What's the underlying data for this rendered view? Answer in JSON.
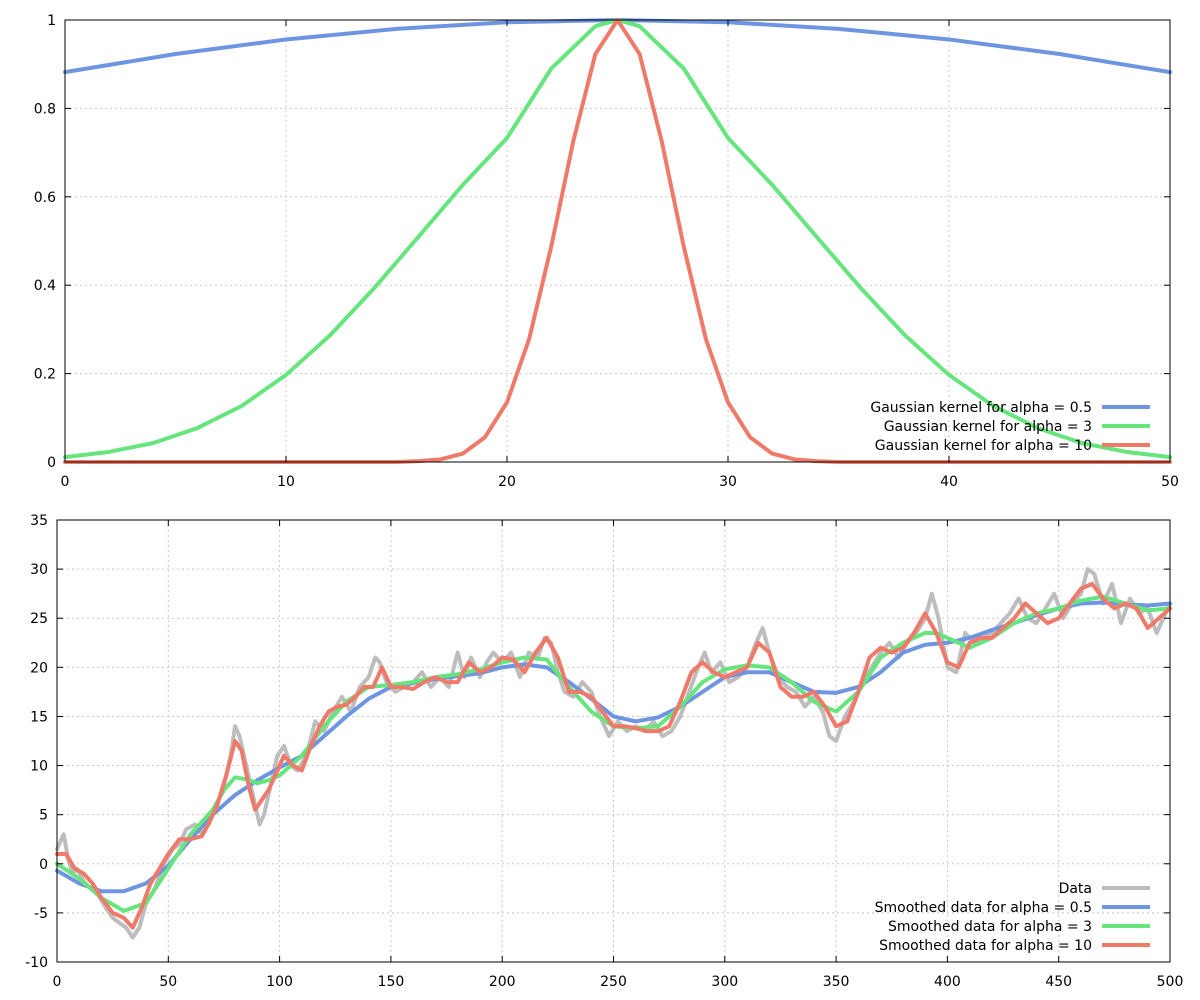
{
  "chart_data": [
    {
      "type": "line",
      "title": "",
      "xlabel": "",
      "ylabel": "",
      "xlim": [
        0,
        50
      ],
      "ylim": [
        0,
        1
      ],
      "xticks": [
        0,
        10,
        20,
        30,
        40,
        50
      ],
      "yticks": [
        0,
        0.2,
        0.4,
        0.6,
        0.8,
        1
      ],
      "grid": true,
      "legend_position": "bottom-right",
      "series": [
        {
          "name": "Gaussian kernel for alpha = 0.5",
          "color": "#6e95e2",
          "x": [
            0,
            5,
            10,
            15,
            20,
            25,
            30,
            35,
            40,
            45,
            50
          ],
          "y": [
            0.882,
            0.923,
            0.956,
            0.98,
            0.995,
            1.0,
            0.995,
            0.98,
            0.956,
            0.923,
            0.882
          ]
        },
        {
          "name": "Gaussian kernel for alpha = 3",
          "color": "#66e57c",
          "x": [
            0,
            2,
            4,
            6,
            8,
            10,
            12,
            14,
            16,
            18,
            20,
            22,
            24,
            25,
            26,
            28,
            30,
            32,
            34,
            36,
            38,
            40,
            42,
            44,
            46,
            48,
            50
          ],
          "y": [
            0.011,
            0.023,
            0.043,
            0.077,
            0.127,
            0.197,
            0.287,
            0.394,
            0.51,
            0.627,
            0.733,
            0.89,
            0.986,
            1.0,
            0.986,
            0.89,
            0.733,
            0.627,
            0.51,
            0.394,
            0.287,
            0.197,
            0.127,
            0.077,
            0.043,
            0.023,
            0.011
          ]
        },
        {
          "name": "Gaussian kernel for alpha = 10",
          "color": "#f07a6a",
          "x": [
            0,
            15,
            16,
            17,
            18,
            19,
            20,
            21,
            22,
            23,
            24,
            25,
            26,
            27,
            28,
            29,
            30,
            31,
            32,
            33,
            34,
            35,
            50
          ],
          "y": [
            0,
            0,
            0.002,
            0.006,
            0.019,
            0.056,
            0.135,
            0.278,
            0.487,
            0.726,
            0.923,
            1.0,
            0.923,
            0.726,
            0.487,
            0.278,
            0.135,
            0.056,
            0.019,
            0.006,
            0.002,
            0,
            0
          ]
        }
      ]
    },
    {
      "type": "line",
      "title": "",
      "xlabel": "",
      "ylabel": "",
      "xlim": [
        0,
        500
      ],
      "ylim": [
        -10,
        35
      ],
      "xticks": [
        0,
        50,
        100,
        150,
        200,
        250,
        300,
        350,
        400,
        450,
        500
      ],
      "yticks": [
        -10,
        -5,
        0,
        5,
        10,
        15,
        20,
        25,
        30,
        35
      ],
      "grid": true,
      "legend_position": "bottom-right",
      "series": [
        {
          "name": "Data",
          "color": "#bdbdbd",
          "x": [
            0,
            3,
            5,
            7,
            9,
            12,
            15,
            18,
            22,
            25,
            28,
            31,
            34,
            37,
            40,
            44,
            48,
            52,
            55,
            58,
            62,
            65,
            68,
            72,
            75,
            78,
            80,
            82,
            85,
            88,
            91,
            93,
            96,
            99,
            102,
            105,
            108,
            112,
            116,
            120,
            124,
            128,
            132,
            136,
            140,
            143,
            145,
            148,
            152,
            156,
            160,
            164,
            168,
            172,
            176,
            180,
            183,
            186,
            190,
            193,
            196,
            200,
            204,
            208,
            212,
            216,
            219,
            222,
            225,
            228,
            232,
            236,
            240,
            244,
            248,
            252,
            256,
            260,
            264,
            268,
            272,
            276,
            280,
            284,
            288,
            291,
            294,
            298,
            302,
            306,
            310,
            314,
            317,
            320,
            324,
            328,
            332,
            336,
            340,
            344,
            347,
            350,
            354,
            358,
            362,
            366,
            370,
            374,
            378,
            382,
            386,
            390,
            393,
            396,
            400,
            404,
            408,
            412,
            416,
            420,
            424,
            428,
            432,
            436,
            440,
            444,
            448,
            452,
            456,
            460,
            463,
            466,
            470,
            474,
            478,
            482,
            486,
            490,
            494,
            497,
            500
          ],
          "y": [
            1.5,
            3.0,
            0.5,
            -1.0,
            -0.5,
            -1.8,
            -2.5,
            -3.0,
            -4.5,
            -5.5,
            -6.0,
            -6.5,
            -7.5,
            -6.5,
            -4.0,
            -2.5,
            0.0,
            1.5,
            2.0,
            3.5,
            4.0,
            3.0,
            4.0,
            6.0,
            8.0,
            11.0,
            14.0,
            13.0,
            10.0,
            7.0,
            4.0,
            5.0,
            8.0,
            11.0,
            12.0,
            10.0,
            9.5,
            11.0,
            14.5,
            13.5,
            15.5,
            17.0,
            15.5,
            18.0,
            19.0,
            21.0,
            20.5,
            18.5,
            17.5,
            18.0,
            18.5,
            19.5,
            18.0,
            19.0,
            18.0,
            21.5,
            19.0,
            21.0,
            19.0,
            20.5,
            21.5,
            20.5,
            21.5,
            19.0,
            21.5,
            21.0,
            23.0,
            22.5,
            19.5,
            17.5,
            17.0,
            18.5,
            17.5,
            15.0,
            13.0,
            14.5,
            13.5,
            14.0,
            13.5,
            14.5,
            13.0,
            13.5,
            15.0,
            17.5,
            20.0,
            21.5,
            19.5,
            20.5,
            18.5,
            19.0,
            20.0,
            22.5,
            24.0,
            21.5,
            19.0,
            18.0,
            17.5,
            16.0,
            17.0,
            15.5,
            13.0,
            12.5,
            15.0,
            16.5,
            18.5,
            20.0,
            21.5,
            22.5,
            21.0,
            22.5,
            23.5,
            25.0,
            27.5,
            25.0,
            20.0,
            19.5,
            23.5,
            22.5,
            23.0,
            23.5,
            24.5,
            25.5,
            27.0,
            25.0,
            24.5,
            26.0,
            27.5,
            25.0,
            26.5,
            27.5,
            30.0,
            29.5,
            26.5,
            28.5,
            24.5,
            27.0,
            25.5,
            26.0,
            23.5,
            25.0,
            26.5
          ]
        },
        {
          "name": "Smoothed data for alpha = 0.5",
          "color": "#6e95e2",
          "x": [
            0,
            10,
            20,
            30,
            40,
            50,
            60,
            70,
            80,
            90,
            100,
            110,
            120,
            130,
            140,
            150,
            160,
            170,
            180,
            190,
            200,
            210,
            220,
            230,
            240,
            250,
            260,
            270,
            280,
            290,
            300,
            310,
            320,
            330,
            340,
            350,
            360,
            370,
            380,
            390,
            400,
            410,
            420,
            430,
            440,
            450,
            460,
            470,
            480,
            490,
            500
          ],
          "y": [
            -0.7,
            -2.0,
            -2.8,
            -2.8,
            -2.0,
            -0.2,
            2.5,
            5.0,
            7.0,
            8.5,
            9.8,
            11.0,
            13.0,
            15.0,
            16.8,
            18.0,
            18.4,
            18.8,
            19.1,
            19.4,
            20.0,
            20.3,
            20.0,
            18.5,
            16.8,
            15.0,
            14.5,
            14.9,
            16.0,
            17.5,
            19.0,
            19.5,
            19.5,
            18.5,
            17.5,
            17.4,
            18.0,
            19.5,
            21.5,
            22.3,
            22.5,
            23.0,
            23.8,
            24.5,
            25.3,
            26.0,
            26.5,
            26.6,
            26.4,
            26.3,
            26.5
          ]
        },
        {
          "name": "Smoothed data for alpha = 3",
          "color": "#66e57c",
          "x": [
            0,
            10,
            20,
            30,
            40,
            50,
            60,
            70,
            75,
            80,
            85,
            90,
            95,
            100,
            110,
            120,
            130,
            140,
            150,
            160,
            170,
            180,
            190,
            200,
            210,
            220,
            230,
            240,
            250,
            260,
            270,
            280,
            290,
            300,
            310,
            320,
            330,
            340,
            350,
            360,
            370,
            380,
            390,
            395,
            400,
            410,
            420,
            430,
            440,
            450,
            460,
            470,
            480,
            490,
            500
          ],
          "y": [
            0.0,
            -1.5,
            -3.5,
            -4.8,
            -4.0,
            -0.5,
            3.0,
            5.5,
            7.5,
            8.8,
            8.6,
            8.2,
            8.5,
            9.0,
            11.0,
            14.0,
            16.5,
            18.0,
            18.2,
            18.5,
            19.0,
            19.3,
            19.8,
            20.5,
            21.0,
            20.8,
            18.0,
            15.5,
            14.0,
            13.8,
            14.0,
            16.0,
            18.5,
            19.8,
            20.2,
            20.0,
            18.5,
            16.5,
            15.5,
            17.5,
            21.0,
            22.5,
            23.5,
            23.5,
            23.0,
            22.0,
            23.0,
            24.5,
            25.5,
            26.0,
            26.8,
            27.2,
            26.5,
            25.8,
            26.0
          ]
        },
        {
          "name": "Smoothed data for alpha = 10",
          "color": "#f07a6a",
          "x": [
            0,
            4,
            8,
            12,
            16,
            20,
            25,
            30,
            34,
            38,
            42,
            46,
            50,
            55,
            60,
            65,
            68,
            72,
            76,
            80,
            83,
            86,
            89,
            92,
            95,
            98,
            102,
            106,
            110,
            114,
            118,
            122,
            126,
            130,
            134,
            138,
            142,
            146,
            150,
            155,
            160,
            165,
            170,
            175,
            180,
            185,
            190,
            195,
            200,
            205,
            210,
            215,
            220,
            225,
            230,
            235,
            240,
            245,
            250,
            255,
            260,
            265,
            270,
            275,
            280,
            285,
            290,
            295,
            300,
            305,
            310,
            315,
            320,
            325,
            330,
            335,
            340,
            345,
            350,
            355,
            360,
            365,
            370,
            375,
            380,
            385,
            390,
            395,
            400,
            405,
            410,
            415,
            420,
            425,
            430,
            435,
            440,
            445,
            450,
            455,
            460,
            465,
            470,
            475,
            480,
            485,
            490,
            495,
            500
          ],
          "y": [
            1.0,
            1.0,
            -0.5,
            -1.0,
            -2.0,
            -3.5,
            -5.0,
            -5.5,
            -6.5,
            -4.5,
            -2.0,
            -0.5,
            1.0,
            2.5,
            2.5,
            2.8,
            4.0,
            6.0,
            9.0,
            12.5,
            11.5,
            8.0,
            5.5,
            6.5,
            7.5,
            9.0,
            11.0,
            10.0,
            9.5,
            12.0,
            14.0,
            15.5,
            16.0,
            16.2,
            17.0,
            18.0,
            18.0,
            20.0,
            18.0,
            18.0,
            17.8,
            18.5,
            19.0,
            18.5,
            18.5,
            20.5,
            19.5,
            20.0,
            21.0,
            20.8,
            19.5,
            21.5,
            23.0,
            21.0,
            17.5,
            17.5,
            17.0,
            15.5,
            14.0,
            14.0,
            13.8,
            13.5,
            13.5,
            14.0,
            16.5,
            19.5,
            20.5,
            19.5,
            19.0,
            19.5,
            20.0,
            22.5,
            21.5,
            18.0,
            17.0,
            17.0,
            17.5,
            16.0,
            14.0,
            14.5,
            17.5,
            21.0,
            22.0,
            21.5,
            22.0,
            23.5,
            25.5,
            23.5,
            20.5,
            20.0,
            22.5,
            23.0,
            23.0,
            24.0,
            25.0,
            26.5,
            25.5,
            24.5,
            25.0,
            26.5,
            28.0,
            28.5,
            27.0,
            26.0,
            26.5,
            26.0,
            24.0,
            25.0,
            26.0
          ]
        }
      ]
    }
  ]
}
